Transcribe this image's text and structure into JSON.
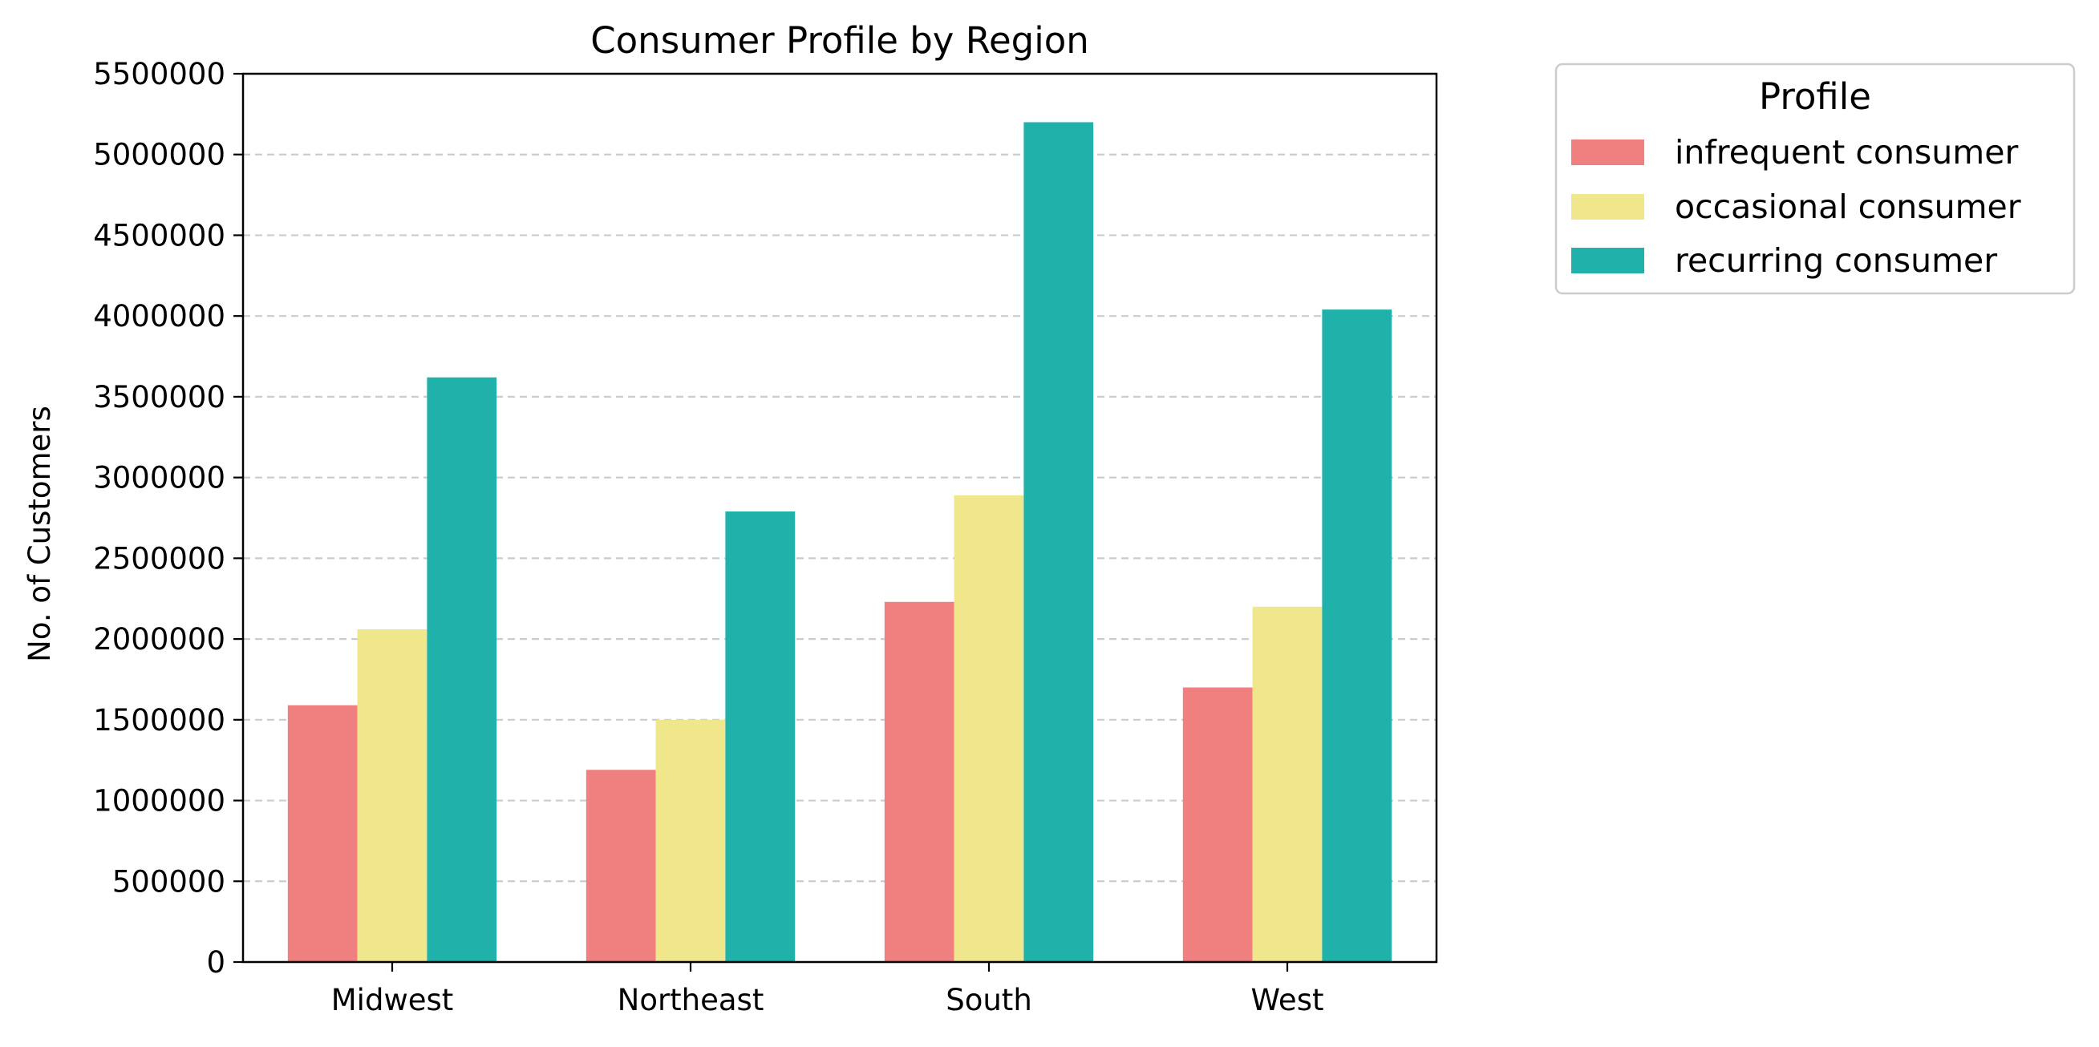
{
  "chart_data": {
    "type": "bar",
    "title": "Consumer Profile by Region",
    "xlabel": "",
    "ylabel": "No. of Customers",
    "categories": [
      "Midwest",
      "Northeast",
      "South",
      "West"
    ],
    "series": [
      {
        "name": "infrequent consumer",
        "color": "#f08080",
        "values": [
          1590000,
          1190000,
          2230000,
          1700000
        ]
      },
      {
        "name": "occasional consumer",
        "color": "#f0e68c",
        "values": [
          2060000,
          1500000,
          2890000,
          2200000
        ]
      },
      {
        "name": "recurring consumer",
        "color": "#20b2aa",
        "values": [
          3620000,
          2790000,
          5200000,
          4040000
        ]
      }
    ],
    "ylim": [
      0,
      5500000
    ],
    "yticks": [
      "0",
      "500000",
      "1000000",
      "1500000",
      "2000000",
      "2500000",
      "3000000",
      "3500000",
      "4000000",
      "4500000",
      "5000000",
      "5500000"
    ],
    "grid": "y-dashed",
    "legend": {
      "title": "Profile",
      "placement": "outside-top-right"
    }
  }
}
